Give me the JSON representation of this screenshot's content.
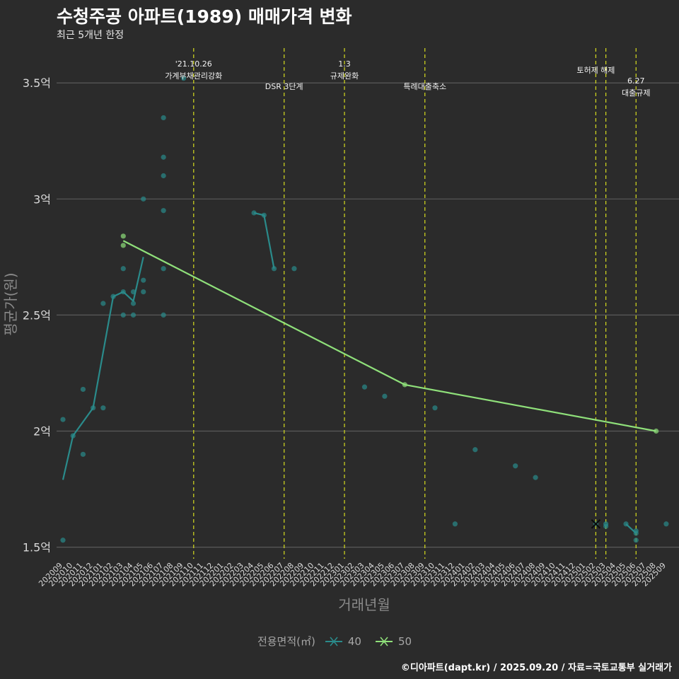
{
  "title": "수청주공 아파트(1989) 매매가격 변화",
  "subtitle": "최근 5개년 한정",
  "caption": "©디아파트(dapt.kr) / 2025.09.20 / 자료=국토교통부 실거래가",
  "legend_title": "전용면적(㎡)",
  "colors": {
    "background": "#2b2b2b",
    "grid": "#5a5a5a",
    "series_40": "#2a8b8b",
    "series_50": "#8fe07a",
    "event_line": "#d6dc1e",
    "axis_text": "#d9d9d9",
    "axis_title": "#8a8a8a"
  },
  "chart_data": {
    "type": "line",
    "title": "수청주공 아파트(1989) 매매가격 변화",
    "subtitle": "최근 5개년 한정",
    "xlabel": "거래년월",
    "ylabel": "평균가(원)",
    "ylim": [
      1.45,
      3.65
    ],
    "yticks": [
      1.5,
      2,
      2.5,
      3,
      3.5
    ],
    "ytick_labels": [
      "1.5억",
      "2억",
      "2.5억",
      "3억",
      "3.5억"
    ],
    "grid": true,
    "legend_position": "bottom",
    "categories": [
      "202009",
      "202010",
      "202011",
      "202012",
      "202101",
      "202102",
      "202103",
      "202104",
      "202105",
      "202106",
      "202107",
      "202108",
      "202109",
      "202110",
      "202111",
      "202112",
      "202201",
      "202202",
      "202203",
      "202204",
      "202205",
      "202206",
      "202207",
      "202208",
      "202209",
      "202210",
      "202211",
      "202212",
      "202301",
      "202302",
      "202303",
      "202304",
      "202305",
      "202306",
      "202307",
      "202308",
      "202309",
      "202310",
      "202311",
      "202312",
      "202401",
      "202402",
      "202403",
      "202404",
      "202405",
      "202406",
      "202407",
      "202408",
      "202409",
      "202410",
      "202411",
      "202412",
      "202501",
      "202502",
      "202503",
      "202504",
      "202505",
      "202506",
      "202507",
      "202508",
      "202509"
    ],
    "series": [
      {
        "name": "40",
        "color": "#2a8b8b",
        "line": [
          [
            "202009",
            1.79
          ],
          [
            "202010",
            1.98
          ],
          [
            "202012",
            2.1
          ],
          [
            "202102",
            2.58
          ],
          [
            "202103",
            2.6
          ],
          [
            "202104",
            2.56
          ],
          [
            "202105",
            2.75
          ]
        ],
        "line2": [
          [
            "202204",
            2.94
          ],
          [
            "202205",
            2.93
          ],
          [
            "202206",
            2.7
          ]
        ],
        "line3": [
          [
            "202505",
            1.6
          ],
          [
            "202506",
            1.56
          ]
        ],
        "points": [
          [
            "202009",
            2.05
          ],
          [
            "202009",
            1.53
          ],
          [
            "202010",
            1.98
          ],
          [
            "202011",
            2.18
          ],
          [
            "202011",
            1.9
          ],
          [
            "202012",
            2.1
          ],
          [
            "202101",
            2.55
          ],
          [
            "202101",
            2.1
          ],
          [
            "202102",
            2.58
          ],
          [
            "202103",
            2.7
          ],
          [
            "202103",
            2.6
          ],
          [
            "202103",
            2.5
          ],
          [
            "202104",
            2.6
          ],
          [
            "202104",
            2.55
          ],
          [
            "202104",
            2.5
          ],
          [
            "202105",
            3.0
          ],
          [
            "202105",
            2.65
          ],
          [
            "202105",
            2.6
          ],
          [
            "202107",
            3.35
          ],
          [
            "202107",
            3.18
          ],
          [
            "202107",
            3.1
          ],
          [
            "202107",
            2.95
          ],
          [
            "202107",
            2.7
          ],
          [
            "202107",
            2.5
          ],
          [
            "202109",
            3.52
          ],
          [
            "202204",
            2.94
          ],
          [
            "202205",
            2.93
          ],
          [
            "202206",
            2.7
          ],
          [
            "202208",
            2.7
          ],
          [
            "202303",
            2.19
          ],
          [
            "202305",
            2.15
          ],
          [
            "202310",
            2.1
          ],
          [
            "202312",
            1.6
          ],
          [
            "202402",
            1.92
          ],
          [
            "202406",
            1.85
          ],
          [
            "202408",
            1.8
          ],
          [
            "202502",
            1.6
          ],
          [
            "202503",
            1.6
          ],
          [
            "202503",
            1.59
          ],
          [
            "202505",
            1.6
          ],
          [
            "202506",
            1.57
          ],
          [
            "202506",
            1.56
          ],
          [
            "202506",
            1.53
          ],
          [
            "202509",
            1.6
          ]
        ]
      },
      {
        "name": "50",
        "color": "#8fe07a",
        "line": [
          [
            "202103",
            2.82
          ],
          [
            "202307",
            2.2
          ],
          [
            "202508",
            2.0
          ]
        ],
        "points": [
          [
            "202103",
            2.84
          ],
          [
            "202103",
            2.8
          ],
          [
            "202307",
            2.2
          ],
          [
            "202508",
            2.0
          ]
        ]
      }
    ],
    "events": [
      {
        "x": "202110",
        "date": "'21.10.26",
        "label": "가계부채관리강화"
      },
      {
        "x": "202207",
        "date": "",
        "label": "DSR 3단계"
      },
      {
        "x": "202301",
        "date": "1.3",
        "label": "규제완화"
      },
      {
        "x": "202309",
        "date": "",
        "label": "특례대출축소"
      },
      {
        "x": "202502",
        "date": "",
        "label": "토허제 해제"
      },
      {
        "x": "202503",
        "date": "",
        "label": ""
      },
      {
        "x": "202506",
        "date": "6.27",
        "label": "대출규제"
      }
    ]
  }
}
